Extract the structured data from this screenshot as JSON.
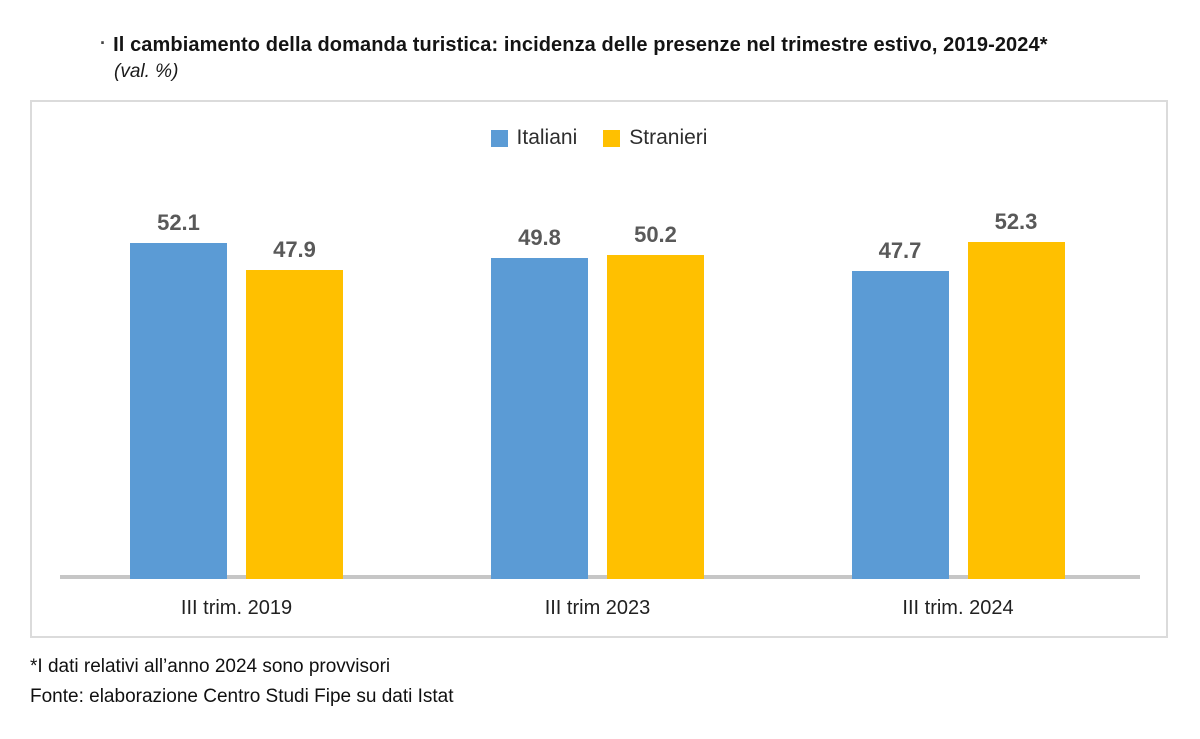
{
  "title": {
    "bullet": "·",
    "text": "Il cambiamento della domanda turistica: incidenza delle presenze nel trimestre estivo, 2019-2024*",
    "subtitle": "(val. %)"
  },
  "legend": [
    {
      "label": "Italiani",
      "color": "#5B9BD5"
    },
    {
      "label": "Stranieri",
      "color": "#FFC000"
    }
  ],
  "chart_data": {
    "type": "bar",
    "title": "Il cambiamento della domanda turistica: incidenza delle presenze nel trimestre estivo, 2019-2024*",
    "subtitle": "(val. %)",
    "categories": [
      "III trim. 2019",
      "III trim 2023",
      "III trim. 2024"
    ],
    "series": [
      {
        "name": "Italiani",
        "color": "#5B9BD5",
        "values": [
          52.1,
          49.8,
          47.7
        ]
      },
      {
        "name": "Stranieri",
        "color": "#FFC000",
        "values": [
          47.9,
          50.2,
          52.3
        ]
      }
    ],
    "xlabel": "",
    "ylabel": "",
    "ylim": [
      0,
      60
    ],
    "grid": false,
    "legend_position": "top-center",
    "data_labels": true,
    "data_label_format": "one-decimal"
  },
  "footnotes": {
    "note": "*I dati relativi all’anno 2024 sono provvisori",
    "source": "Fonte: elaborazione Centro Studi Fipe su dati Istat"
  },
  "colors": {
    "italiani_bar": "#5B9BD5",
    "stranieri_bar": "#FFC000",
    "value_label": "#595959",
    "axis_line": "#C6C6C6",
    "frame_border": "#DBDBDB"
  }
}
